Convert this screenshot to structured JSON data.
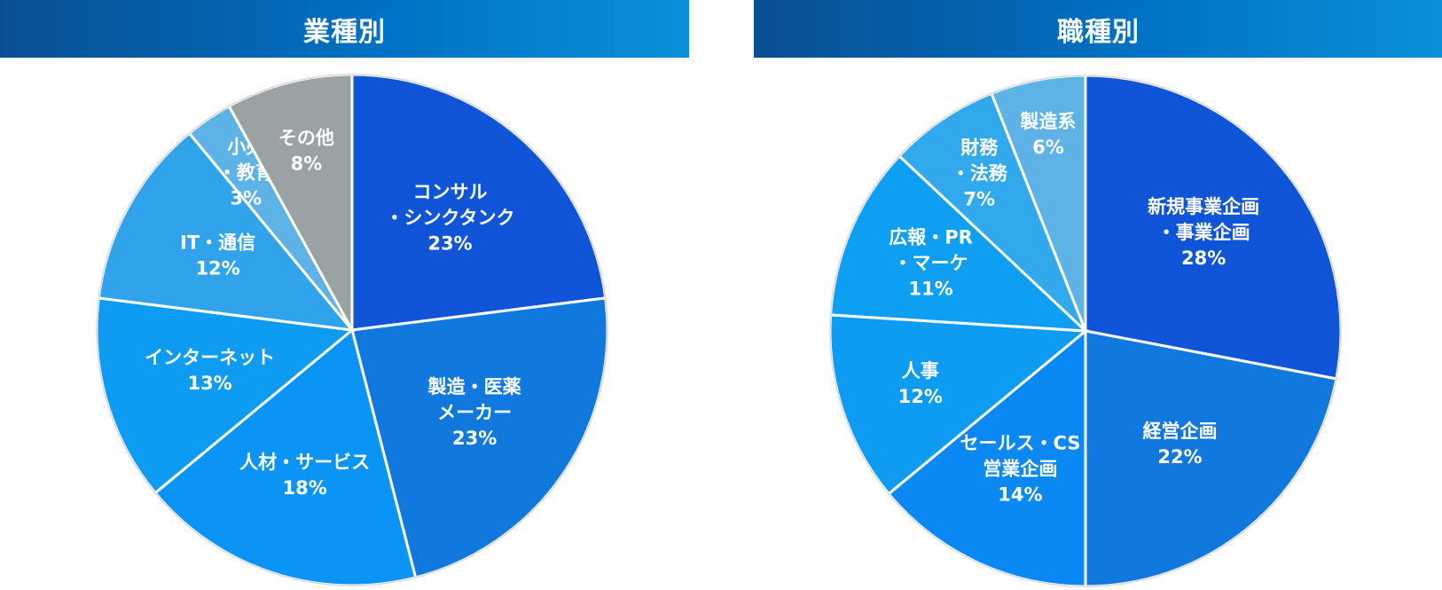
{
  "chart_data": [
    {
      "type": "pie",
      "title": "業種別",
      "slices": [
        {
          "lines": [
            "コンサル",
            "・シンクタンク"
          ],
          "value": 23,
          "value_label": "23%",
          "color": "#1055d8"
        },
        {
          "lines": [
            "製造・医薬",
            "メーカー"
          ],
          "value": 23,
          "value_label": "23%",
          "color": "#1178de"
        },
        {
          "lines": [
            "人材・サービス"
          ],
          "value": 18,
          "value_label": "18%",
          "color": "#0a94f6"
        },
        {
          "lines": [
            "インターネット"
          ],
          "value": 13,
          "value_label": "13%",
          "color": "#0d9cf2"
        },
        {
          "lines": [
            "IT・通信"
          ],
          "value": 12,
          "value_label": "12%",
          "color": "#31a3ea"
        },
        {
          "lines": [
            "小売",
            "・教育"
          ],
          "value": 3,
          "value_label": "3%",
          "color": "#5db2e6"
        },
        {
          "lines": [
            "その他"
          ],
          "value": 8,
          "value_label": "8%",
          "color": "#9aa2a4"
        }
      ]
    },
    {
      "type": "pie",
      "title": "職種別",
      "slices": [
        {
          "lines": [
            "新規事業企画",
            "・事業企画"
          ],
          "value": 28,
          "value_label": "28%",
          "color": "#1055d8"
        },
        {
          "lines": [
            "経営企画"
          ],
          "value": 22,
          "value_label": "22%",
          "color": "#1178de"
        },
        {
          "lines": [
            "セールス・CS",
            "営業企画"
          ],
          "value": 14,
          "value_label": "14%",
          "color": "#0a88f4"
        },
        {
          "lines": [
            "人事"
          ],
          "value": 12,
          "value_label": "12%",
          "color": "#0d9cf2"
        },
        {
          "lines": [
            "広報・PR",
            "・マーケ"
          ],
          "value": 11,
          "value_label": "11%",
          "color": "#0e9ef2"
        },
        {
          "lines": [
            "財務",
            "・法務"
          ],
          "value": 7,
          "value_label": "7%",
          "color": "#31a9ec"
        },
        {
          "lines": [
            "製造系"
          ],
          "value": 6,
          "value_label": "6%",
          "color": "#5db2e6"
        }
      ]
    }
  ]
}
